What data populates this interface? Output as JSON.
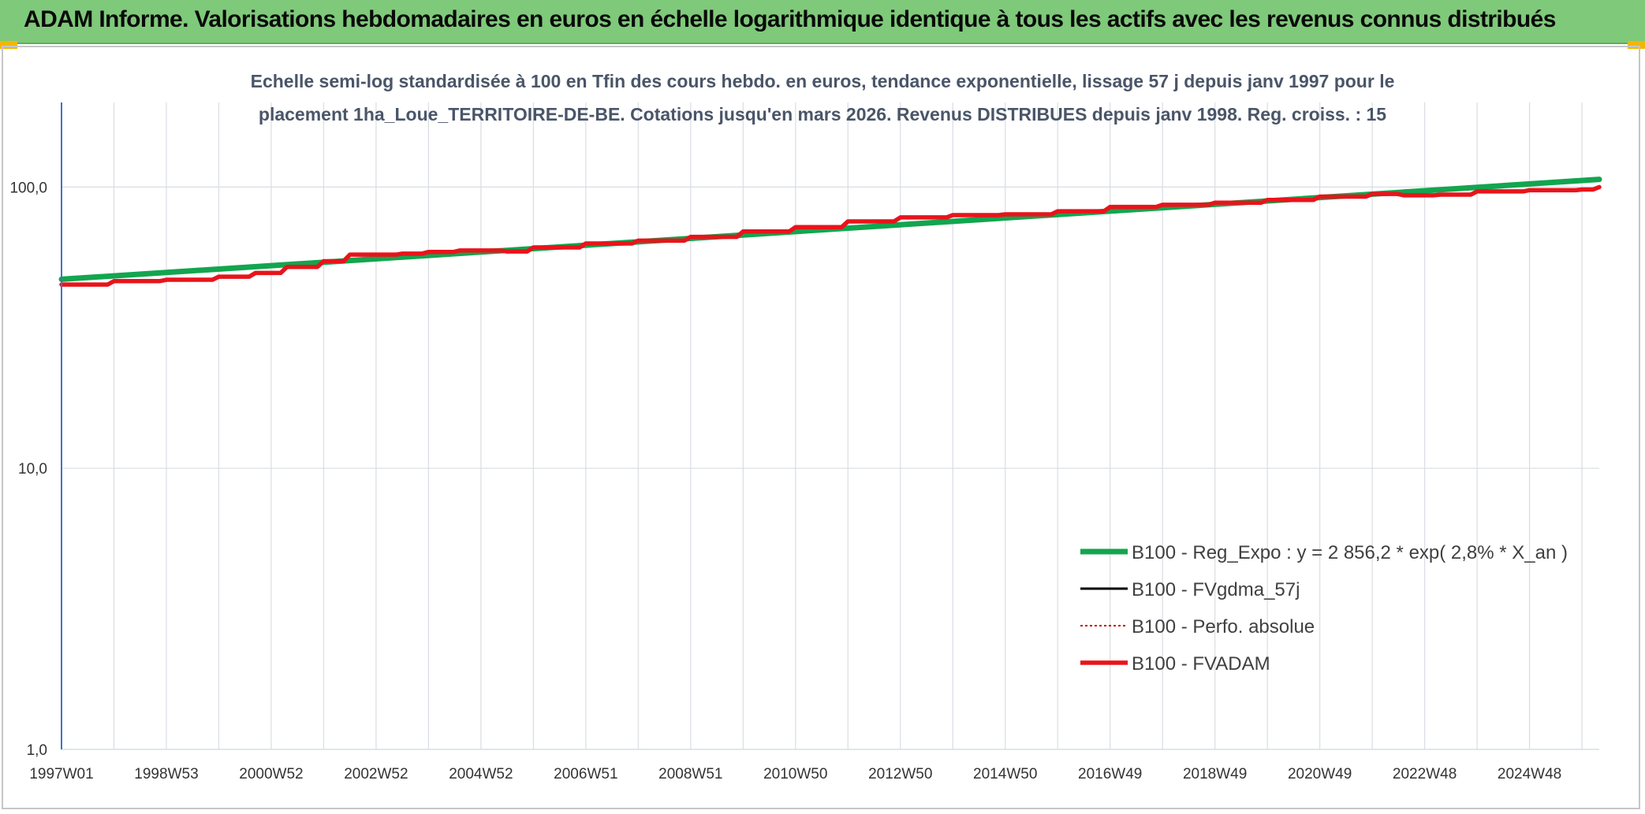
{
  "banner": {
    "title": "ADAM Informe. Valorisations hebdomadaires en euros en échelle logarithmique identique à tous les actifs avec les revenus connus distribués"
  },
  "colors": {
    "banner_bg": "#7fc97a",
    "corner_accent": "#f3b700",
    "axis": "#4472c4",
    "grid": "#d9dde3"
  },
  "chart_data": {
    "type": "line",
    "title_lines": [
      "Echelle semi-log standardisée à 100 en Tfin des cours hebdo. en euros, tendance exponentielle, lissage 57 j depuis janv 1997 pour le",
      "placement 1ha_Loue_TERRITOIRE-DE-BE. Cotations jusqu'en mars 2026. Revenus DISTRIBUES depuis janv 1998. Reg. croiss. : 15"
    ],
    "y_scale": "log",
    "ylim": [
      1,
      200
    ],
    "y_ticks": [
      {
        "value": 1,
        "label": "1,0"
      },
      {
        "value": 10,
        "label": "10,0"
      },
      {
        "value": 100,
        "label": "100,0"
      }
    ],
    "xlim": [
      1997.0,
      2026.33
    ],
    "x_ticks": [
      {
        "value": 1997.0,
        "label": "1997W01"
      },
      {
        "value": 1999.0,
        "label": "1998W53"
      },
      {
        "value": 2001.0,
        "label": "2000W52"
      },
      {
        "value": 2003.0,
        "label": "2002W52"
      },
      {
        "value": 2005.0,
        "label": "2004W52"
      },
      {
        "value": 2007.0,
        "label": "2006W51"
      },
      {
        "value": 2009.0,
        "label": "2008W51"
      },
      {
        "value": 2011.0,
        "label": "2010W50"
      },
      {
        "value": 2013.0,
        "label": "2012W50"
      },
      {
        "value": 2015.0,
        "label": "2014W50"
      },
      {
        "value": 2017.0,
        "label": "2016W49"
      },
      {
        "value": 2019.0,
        "label": "2018W49"
      },
      {
        "value": 2021.0,
        "label": "2020W49"
      },
      {
        "value": 2023.0,
        "label": "2022W48"
      },
      {
        "value": 2025.0,
        "label": "2024W48"
      }
    ],
    "grid": {
      "vertical": true,
      "horizontal": true
    },
    "legend_placement": "right-center",
    "series": [
      {
        "name": "B100 - Reg_Expo : y = 2 856,2 * exp( 2,8% *  X_an )",
        "color": "#13a54f",
        "style": "solid",
        "points": [
          [
            1997.0,
            47.0
          ],
          [
            2026.33,
            106.5
          ]
        ]
      },
      {
        "name": "B100 - FVgdma_57j",
        "color": "#000000",
        "style": "solid",
        "points": []
      },
      {
        "name": "B100 - Perfo. absolue",
        "color": "#c00000",
        "style": "dotted",
        "points": []
      },
      {
        "name": "B100 - FVADAM",
        "color": "#e8141b",
        "style": "solid",
        "points": [
          [
            1997.0,
            45.0
          ],
          [
            1998.0,
            46.3
          ],
          [
            1999.0,
            46.8
          ],
          [
            2000.0,
            48.0
          ],
          [
            2000.7,
            49.5
          ],
          [
            2001.3,
            52.0
          ],
          [
            2002.0,
            54.5
          ],
          [
            2002.5,
            57.5
          ],
          [
            2003.5,
            58.0
          ],
          [
            2004.0,
            58.8
          ],
          [
            2004.6,
            59.5
          ],
          [
            2005.5,
            59.0
          ],
          [
            2006.0,
            61.0
          ],
          [
            2007.0,
            63.0
          ],
          [
            2008.0,
            64.5
          ],
          [
            2009.0,
            66.5
          ],
          [
            2010.0,
            69.5
          ],
          [
            2011.0,
            72.0
          ],
          [
            2012.0,
            75.5
          ],
          [
            2013.0,
            78.0
          ],
          [
            2014.0,
            79.5
          ],
          [
            2015.0,
            80.0
          ],
          [
            2016.0,
            82.0
          ],
          [
            2017.0,
            85.0
          ],
          [
            2018.0,
            86.5
          ],
          [
            2019.0,
            88.0
          ],
          [
            2020.0,
            90.0
          ],
          [
            2021.0,
            92.5
          ],
          [
            2022.0,
            94.5
          ],
          [
            2022.6,
            93.5
          ],
          [
            2023.3,
            94.0
          ],
          [
            2024.0,
            96.5
          ],
          [
            2025.0,
            97.5
          ],
          [
            2026.0,
            98.0
          ],
          [
            2026.33,
            100.0
          ]
        ]
      }
    ]
  }
}
